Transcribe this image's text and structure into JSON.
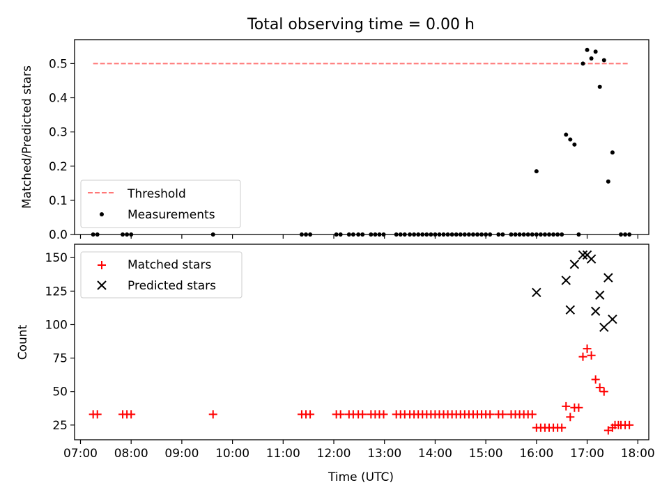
{
  "chart_data": [
    {
      "type": "scatter",
      "title": "Total observing time = 0.00 h",
      "xlabel": "",
      "ylabel": "Matched/Predicted stars",
      "xlim": [
        "06:53",
        "18:13"
      ],
      "ylim": [
        0,
        0.57
      ],
      "yticks": [
        0.0,
        0.1,
        0.2,
        0.3,
        0.4,
        0.5
      ],
      "ytick_labels": [
        "0.0",
        "0.1",
        "0.2",
        "0.3",
        "0.4",
        "0.5"
      ],
      "legend": [
        "Threshold",
        "Measurements"
      ],
      "legend_position": "lower-left",
      "grid": false,
      "threshold": {
        "name": "Threshold",
        "value": 0.5,
        "x_start": "07:15",
        "x_end": "17:50",
        "color": "#ff7777",
        "style": "dashed"
      },
      "series": [
        {
          "name": "Measurements",
          "marker": "dot",
          "color": "#000000",
          "points": [
            [
              "07:15",
              0
            ],
            [
              "07:20",
              0
            ],
            [
              "07:50",
              0
            ],
            [
              "07:55",
              0
            ],
            [
              "08:00",
              0
            ],
            [
              "09:37",
              0
            ],
            [
              "11:22",
              0
            ],
            [
              "11:27",
              0
            ],
            [
              "11:32",
              0
            ],
            [
              "12:03",
              0
            ],
            [
              "12:08",
              0
            ],
            [
              "12:18",
              0
            ],
            [
              "12:23",
              0
            ],
            [
              "12:29",
              0
            ],
            [
              "12:34",
              0
            ],
            [
              "12:44",
              0
            ],
            [
              "12:49",
              0
            ],
            [
              "12:54",
              0
            ],
            [
              "12:59",
              0
            ],
            [
              "13:14",
              0
            ],
            [
              "13:19",
              0
            ],
            [
              "13:24",
              0
            ],
            [
              "13:30",
              0
            ],
            [
              "13:35",
              0
            ],
            [
              "13:40",
              0
            ],
            [
              "13:45",
              0
            ],
            [
              "13:50",
              0
            ],
            [
              "13:55",
              0
            ],
            [
              "14:00",
              0
            ],
            [
              "14:05",
              0
            ],
            [
              "14:10",
              0
            ],
            [
              "14:15",
              0
            ],
            [
              "14:20",
              0
            ],
            [
              "14:25",
              0
            ],
            [
              "14:30",
              0
            ],
            [
              "14:35",
              0
            ],
            [
              "14:40",
              0
            ],
            [
              "14:45",
              0
            ],
            [
              "14:50",
              0
            ],
            [
              "14:55",
              0
            ],
            [
              "15:00",
              0
            ],
            [
              "15:05",
              0
            ],
            [
              "15:15",
              0
            ],
            [
              "15:20",
              0
            ],
            [
              "15:30",
              0
            ],
            [
              "15:35",
              0
            ],
            [
              "15:40",
              0
            ],
            [
              "15:45",
              0
            ],
            [
              "15:50",
              0
            ],
            [
              "15:55",
              0
            ],
            [
              "16:00",
              0
            ],
            [
              "16:05",
              0
            ],
            [
              "16:10",
              0
            ],
            [
              "16:15",
              0
            ],
            [
              "16:20",
              0
            ],
            [
              "16:25",
              0
            ],
            [
              "16:30",
              0
            ],
            [
              "16:50",
              0
            ],
            [
              "17:40",
              0
            ],
            [
              "17:45",
              0
            ],
            [
              "17:50",
              0
            ],
            [
              "16:00",
              0.185
            ],
            [
              "16:35",
              0.292
            ],
            [
              "16:40",
              0.278
            ],
            [
              "16:45",
              0.263
            ],
            [
              "16:55",
              0.5
            ],
            [
              "17:00",
              0.54
            ],
            [
              "17:05",
              0.515
            ],
            [
              "17:10",
              0.535
            ],
            [
              "17:15",
              0.432
            ],
            [
              "17:20",
              0.51
            ],
            [
              "17:25",
              0.155
            ],
            [
              "17:30",
              0.24
            ]
          ]
        }
      ]
    },
    {
      "type": "scatter",
      "title": "",
      "xlabel": "Time (UTC)",
      "ylabel": "Count",
      "xlim": [
        "06:53",
        "18:13"
      ],
      "ylim": [
        14,
        160
      ],
      "yticks": [
        25,
        50,
        75,
        100,
        125,
        150
      ],
      "ytick_labels": [
        "25",
        "50",
        "75",
        "100",
        "125",
        "150"
      ],
      "xticks": [
        "07:00",
        "08:00",
        "09:00",
        "10:00",
        "11:00",
        "12:00",
        "13:00",
        "14:00",
        "15:00",
        "16:00",
        "17:00",
        "18:00"
      ],
      "legend": [
        "Matched stars",
        "Predicted stars"
      ],
      "legend_position": "top-left",
      "grid": false,
      "series": [
        {
          "name": "Matched stars",
          "marker": "plus",
          "color": "#ff0000",
          "points": [
            [
              "07:15",
              33
            ],
            [
              "07:20",
              33
            ],
            [
              "07:50",
              33
            ],
            [
              "07:55",
              33
            ],
            [
              "08:00",
              33
            ],
            [
              "09:37",
              33
            ],
            [
              "11:22",
              33
            ],
            [
              "11:27",
              33
            ],
            [
              "11:32",
              33
            ],
            [
              "12:03",
              33
            ],
            [
              "12:08",
              33
            ],
            [
              "12:18",
              33
            ],
            [
              "12:23",
              33
            ],
            [
              "12:29",
              33
            ],
            [
              "12:34",
              33
            ],
            [
              "12:44",
              33
            ],
            [
              "12:49",
              33
            ],
            [
              "12:54",
              33
            ],
            [
              "12:59",
              33
            ],
            [
              "13:14",
              33
            ],
            [
              "13:19",
              33
            ],
            [
              "13:24",
              33
            ],
            [
              "13:30",
              33
            ],
            [
              "13:35",
              33
            ],
            [
              "13:40",
              33
            ],
            [
              "13:45",
              33
            ],
            [
              "13:50",
              33
            ],
            [
              "13:55",
              33
            ],
            [
              "14:00",
              33
            ],
            [
              "14:05",
              33
            ],
            [
              "14:10",
              33
            ],
            [
              "14:15",
              33
            ],
            [
              "14:20",
              33
            ],
            [
              "14:25",
              33
            ],
            [
              "14:30",
              33
            ],
            [
              "14:35",
              33
            ],
            [
              "14:40",
              33
            ],
            [
              "14:45",
              33
            ],
            [
              "14:50",
              33
            ],
            [
              "14:55",
              33
            ],
            [
              "15:00",
              33
            ],
            [
              "15:05",
              33
            ],
            [
              "15:15",
              33
            ],
            [
              "15:20",
              33
            ],
            [
              "15:30",
              33
            ],
            [
              "15:35",
              33
            ],
            [
              "15:40",
              33
            ],
            [
              "15:45",
              33
            ],
            [
              "15:50",
              33
            ],
            [
              "15:55",
              33
            ],
            [
              "16:00",
              23
            ],
            [
              "16:05",
              23
            ],
            [
              "16:10",
              23
            ],
            [
              "16:15",
              23
            ],
            [
              "16:20",
              23
            ],
            [
              "16:25",
              23
            ],
            [
              "16:30",
              23
            ],
            [
              "16:35",
              39
            ],
            [
              "16:40",
              31
            ],
            [
              "16:45",
              38
            ],
            [
              "16:50",
              38
            ],
            [
              "16:55",
              76
            ],
            [
              "17:00",
              82
            ],
            [
              "17:05",
              77
            ],
            [
              "17:10",
              59
            ],
            [
              "17:15",
              53
            ],
            [
              "17:20",
              50
            ],
            [
              "17:25",
              21
            ],
            [
              "17:30",
              23
            ],
            [
              "17:33",
              25
            ],
            [
              "17:37",
              25
            ],
            [
              "17:40",
              25
            ],
            [
              "17:45",
              25
            ],
            [
              "17:50",
              25
            ]
          ]
        },
        {
          "name": "Predicted stars",
          "marker": "x",
          "color": "#000000",
          "points": [
            [
              "16:00",
              124
            ],
            [
              "16:35",
              133
            ],
            [
              "16:40",
              111
            ],
            [
              "16:45",
              145
            ],
            [
              "16:55",
              152
            ],
            [
              "17:00",
              152
            ],
            [
              "17:05",
              149
            ],
            [
              "17:10",
              110
            ],
            [
              "17:15",
              122
            ],
            [
              "17:20",
              98
            ],
            [
              "17:25",
              135
            ],
            [
              "17:30",
              104
            ]
          ]
        }
      ]
    }
  ]
}
